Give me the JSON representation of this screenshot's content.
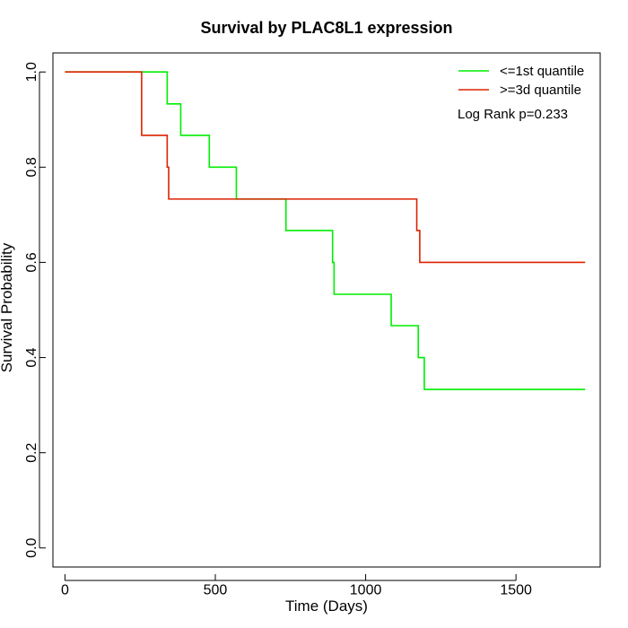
{
  "chart_data": {
    "type": "line",
    "title": "Survival by PLAC8L1 expression",
    "xlabel": "Time (Days)",
    "ylabel": "Survival Probability",
    "xlim": [
      -40,
      1780
    ],
    "ylim": [
      -0.04,
      1.04
    ],
    "xticks": [
      0,
      500,
      1000,
      1500
    ],
    "xtick_labels": [
      "0",
      "500",
      "1000",
      "1500"
    ],
    "yticks": [
      0.0,
      0.2,
      0.4,
      0.6,
      0.8,
      1.0
    ],
    "ytick_labels": [
      "0.0",
      "0.2",
      "0.4",
      "0.6",
      "0.8",
      "1.0"
    ],
    "grid": false,
    "legend_position": "top-right",
    "annotation": "Log Rank p=0.233",
    "series": [
      {
        "name": "<=1st quantile",
        "color": "#00ee00",
        "step": true,
        "x": [
          0,
          340,
          385,
          480,
          570,
          735,
          890,
          895,
          1085,
          1175,
          1195,
          1730
        ],
        "y": [
          1.0,
          0.933,
          0.867,
          0.8,
          0.733,
          0.667,
          0.6,
          0.533,
          0.467,
          0.4,
          0.333,
          0.333
        ]
      },
      {
        "name": ">=3d quantile",
        "color": "#dd2200",
        "step": true,
        "x": [
          0,
          255,
          340,
          345,
          1170,
          1180,
          1730
        ],
        "y": [
          1.0,
          0.867,
          0.8,
          0.733,
          0.667,
          0.6,
          0.6
        ]
      }
    ]
  }
}
